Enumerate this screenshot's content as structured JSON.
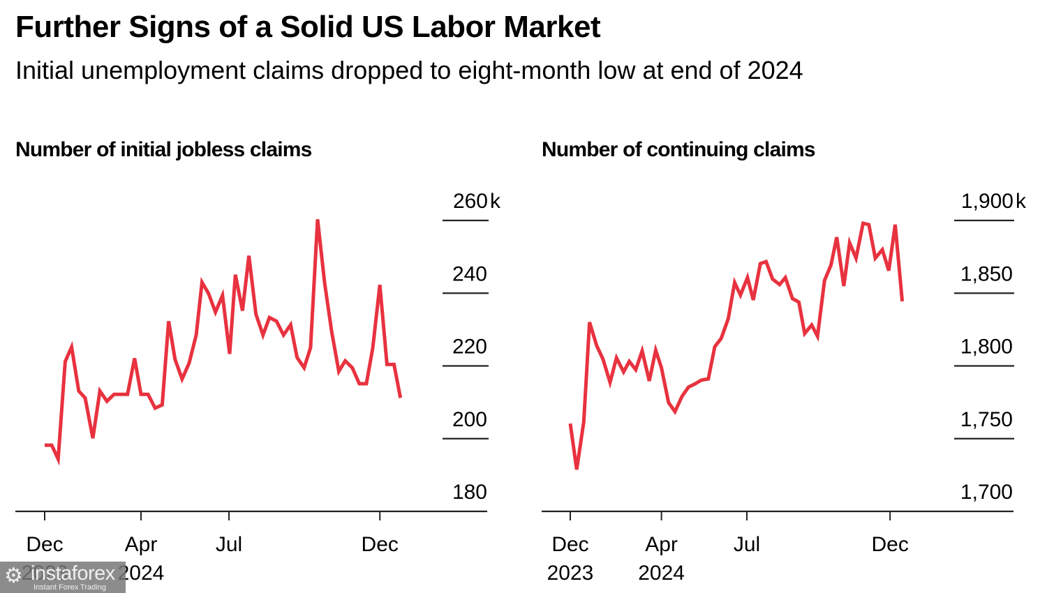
{
  "header": {
    "title": "Further Signs of a Solid US Labor Market",
    "subtitle": "Initial unemployment claims dropped to eight-month low at end of 2024"
  },
  "watermark": {
    "icon": "gear-person-icon",
    "brand": "instaforex",
    "tagline": "Instant Forex Trading"
  },
  "chart_data": [
    {
      "type": "line",
      "title": "Number of initial jobless claims",
      "xlabel": "",
      "ylabel": "",
      "units": "thousands",
      "ylim": [
        180,
        260
      ],
      "yticks": [
        180,
        200,
        220,
        240,
        260
      ],
      "ytick_labels": [
        "180",
        "200",
        "220",
        "240",
        "260k"
      ],
      "xticks": [
        {
          "label": [
            "Dec",
            "2023"
          ],
          "week": 0
        },
        {
          "label": [
            "Apr",
            "2024"
          ],
          "week": 15
        },
        {
          "label": [
            "Jul",
            ""
          ],
          "week": 28.7
        },
        {
          "label": [
            "Dec",
            ""
          ],
          "week": 52.2
        }
      ],
      "grid": false,
      "color": "#e8323f",
      "series": [
        {
          "name": "Initial jobless claims",
          "x": [
            0.0,
            1.1,
            2.1,
            3.2,
            4.2,
            5.3,
            6.3,
            7.5,
            8.6,
            9.7,
            10.8,
            11.8,
            12.9,
            14.0,
            15.0,
            16.1,
            17.2,
            18.3,
            19.3,
            20.3,
            21.4,
            22.5,
            23.6,
            24.5,
            25.5,
            26.6,
            27.7,
            28.8,
            29.7,
            30.8,
            31.8,
            32.9,
            34.0,
            35.0,
            36.1,
            37.2,
            38.3,
            39.3,
            40.4,
            41.4,
            42.5,
            43.6,
            44.7,
            45.8,
            46.8,
            47.9,
            49.0,
            50.1,
            51.1,
            52.2,
            53.3,
            54.4,
            55.4
          ],
          "values": [
            198.2,
            198.2,
            194.4,
            221.2,
            225.2,
            213.1,
            211.2,
            200.1,
            213.1,
            210.3,
            212.2,
            212.2,
            212.2,
            222.1,
            212.2,
            212.2,
            208.4,
            209.3,
            232.3,
            221.8,
            216.4,
            220.8,
            228.5,
            243.0,
            240.0,
            234.8,
            239.4,
            223.3,
            245.1,
            235.2,
            250.3,
            234.2,
            228.5,
            233.3,
            232.3,
            228.5,
            231.3,
            222.3,
            219.5,
            225.0,
            260.3,
            242.8,
            229.4,
            218.5,
            221.4,
            219.5,
            215.1,
            215.1,
            225.0,
            242.3,
            220.4,
            220.4,
            211.2
          ]
        }
      ]
    },
    {
      "type": "line",
      "title": "Number of continuing claims",
      "xlabel": "",
      "ylabel": "",
      "units": "thousands",
      "ylim": [
        1700,
        1900
      ],
      "yticks": [
        1700,
        1750,
        1800,
        1850,
        1900
      ],
      "ytick_labels": [
        "1,700",
        "1,750",
        "1,800",
        "1,850",
        "1,900k"
      ],
      "xticks": [
        {
          "label": [
            "Dec",
            "2023"
          ],
          "week": 0
        },
        {
          "label": [
            "Apr",
            "2024"
          ],
          "week": 14.2
        },
        {
          "label": [
            "Jul",
            ""
          ],
          "week": 27.5
        },
        {
          "label": [
            "Dec",
            ""
          ],
          "week": 49.8
        }
      ],
      "grid": false,
      "color": "#e8323f",
      "series": [
        {
          "name": "Continuing claims",
          "x": [
            0.0,
            1.0,
            2.1,
            3.0,
            4.1,
            5.1,
            6.2,
            7.2,
            8.3,
            9.2,
            10.2,
            11.2,
            12.3,
            13.3,
            14.2,
            15.3,
            16.3,
            17.4,
            18.4,
            19.5,
            20.4,
            21.5,
            22.5,
            23.5,
            24.6,
            25.6,
            26.5,
            27.6,
            28.5,
            29.6,
            30.5,
            31.5,
            32.6,
            33.5,
            34.6,
            35.6,
            36.5,
            37.6,
            38.5,
            39.6,
            40.6,
            41.5,
            42.6,
            43.5,
            44.5,
            45.6,
            46.5,
            47.5,
            48.6,
            49.6,
            50.6,
            51.7
          ],
          "values": [
            1760.4,
            1728.8,
            1761.4,
            1830.0,
            1814.1,
            1804.6,
            1788.7,
            1805.5,
            1795.9,
            1803.1,
            1797.4,
            1810.3,
            1789.7,
            1810.8,
            1798.8,
            1774.8,
            1768.6,
            1779.1,
            1785.4,
            1787.8,
            1790.2,
            1791.1,
            1813.2,
            1818.9,
            1832.4,
            1857.3,
            1848.7,
            1860.7,
            1845.3,
            1870.3,
            1871.7,
            1859.7,
            1855.9,
            1860.7,
            1846.3,
            1843.9,
            1822.3,
            1828.1,
            1820.4,
            1858.8,
            1869.3,
            1888.5,
            1854.9,
            1884.6,
            1874.1,
            1898.1,
            1897.1,
            1874.1,
            1879.9,
            1865.5,
            1897.1,
            1844.4
          ]
        }
      ]
    }
  ]
}
